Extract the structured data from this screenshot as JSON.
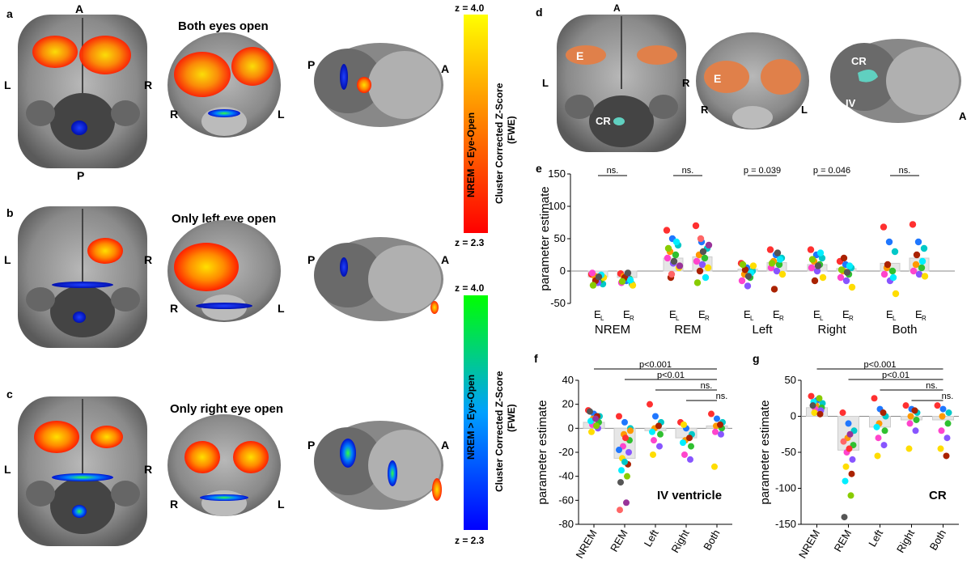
{
  "panel_labels": [
    "a",
    "b",
    "c",
    "d",
    "e",
    "f",
    "g"
  ],
  "panel_titles": {
    "a": "Both eyes open",
    "b": "Only left eye open",
    "c": "Only right eye open"
  },
  "orientation": {
    "A": "A",
    "P": "P",
    "L": "L",
    "R": "R"
  },
  "anatomy_labels": {
    "E": "E",
    "CR": "CR",
    "IV": "IV"
  },
  "colorbars": {
    "top": {
      "max_label": "z = 4.0",
      "min_label": "z = 2.3",
      "contrast": "NREM < Eye-Open",
      "metric": "Cluster Corrected Z-Score",
      "metric_sub": "(FWE)",
      "colors": [
        "#ff0000",
        "#ff8000",
        "#ffff00"
      ]
    },
    "bottom": {
      "max_label": "z = 4.0",
      "min_label": "z = 2.3",
      "contrast": "NREM > Eye-Open",
      "metric": "Cluster Corrected Z-Score",
      "metric_sub": "(FWE)",
      "colors": [
        "#0000ff",
        "#00a0ff",
        "#00ff00"
      ]
    }
  },
  "chart_data": [
    {
      "id": "e",
      "type": "bar",
      "ylabel": "parameter estimate",
      "ylim": [
        -50,
        150
      ],
      "yticks": [
        "150",
        "100",
        "50",
        "0",
        "-50"
      ],
      "groups": [
        "NREM",
        "REM",
        "Left",
        "Right",
        "Both"
      ],
      "bar_labels": [
        "E",
        "E"
      ],
      "bar_subs": [
        "L",
        "R"
      ],
      "bar_values": [
        [
          -9,
          -10
        ],
        [
          20,
          22
        ],
        [
          3,
          13
        ],
        [
          10,
          4
        ],
        [
          12,
          20
        ]
      ],
      "comparisons": [
        "ns.",
        "ns.",
        "p = 0.039",
        "p = 0.046",
        "ns."
      ],
      "points": [
        [
          [
            -5,
            -12,
            -20,
            -8,
            -14,
            -3,
            -18,
            -10,
            -15,
            -6,
            -22,
            -9
          ],
          [
            -4,
            -15,
            -20,
            -8,
            -12,
            -18,
            -6,
            -22,
            -10,
            -14,
            -16,
            -3
          ]
        ],
        [
          [
            63,
            50,
            40,
            30,
            25,
            20,
            12,
            5,
            -10,
            45,
            35,
            15,
            8,
            -5
          ],
          [
            70,
            45,
            35,
            25,
            20,
            15,
            10,
            5,
            0,
            -10,
            -18,
            30,
            40,
            50
          ]
        ],
        [
          [
            12,
            5,
            0,
            -5,
            -10,
            -15,
            -23,
            8,
            2,
            -3,
            10,
            -8
          ],
          [
            33,
            25,
            20,
            15,
            10,
            5,
            0,
            -5,
            -28,
            18,
            12,
            28
          ]
        ],
        [
          [
            33,
            25,
            20,
            15,
            10,
            5,
            0,
            -10,
            -15,
            28,
            18,
            8
          ],
          [
            15,
            10,
            5,
            0,
            -5,
            -10,
            -15,
            -25,
            20,
            8,
            2,
            -2
          ]
        ],
        [
          [
            68,
            45,
            30,
            5,
            0,
            -5,
            -15,
            -35,
            10,
            -10
          ],
          [
            72,
            45,
            35,
            10,
            5,
            0,
            -5,
            -8,
            25,
            15
          ]
        ]
      ]
    },
    {
      "id": "f",
      "type": "bar",
      "ylabel": "parameter estimate",
      "ylim": [
        -80,
        40
      ],
      "yticks": [
        "40",
        "20",
        "0",
        "-20",
        "-40",
        "-60",
        "-80"
      ],
      "categories": [
        "NREM",
        "REM",
        "Left",
        "Right",
        "Both"
      ],
      "values": [
        5,
        -25,
        -2,
        -8,
        2
      ],
      "annotation": "IV ventricle",
      "comparisons": [
        "p<0.001",
        "p<0.01",
        "ns.",
        "ns."
      ],
      "points": [
        [
          15,
          12,
          10,
          8,
          5,
          3,
          0,
          -3,
          10,
          6,
          2,
          14,
          8
        ],
        [
          10,
          5,
          0,
          -5,
          -10,
          -15,
          -20,
          -25,
          -30,
          -35,
          -40,
          -45,
          -62,
          -68,
          -8,
          -18,
          -28,
          -2
        ],
        [
          20,
          10,
          5,
          0,
          -5,
          -10,
          -15,
          -22,
          2,
          -3
        ],
        [
          5,
          0,
          -5,
          -10,
          -15,
          -22,
          -26,
          3,
          -8,
          -12
        ],
        [
          12,
          8,
          5,
          2,
          0,
          -3,
          -5,
          -32,
          3
        ]
      ]
    },
    {
      "id": "g",
      "type": "bar",
      "ylabel": "parameter estimate",
      "ylim": [
        -150,
        50
      ],
      "yticks": [
        "50",
        "0",
        "-50",
        "-100",
        "-150"
      ],
      "categories": [
        "NREM",
        "REM",
        "Left",
        "Right",
        "Both"
      ],
      "values": [
        12,
        -47,
        -15,
        -5,
        -5
      ],
      "annotation": "CR",
      "comparisons": [
        "p<0.001",
        "p<0.01",
        "ns.",
        "ns."
      ],
      "points": [
        [
          28,
          22,
          18,
          15,
          12,
          10,
          8,
          5,
          3,
          20,
          25,
          15
        ],
        [
          5,
          -10,
          -20,
          -30,
          -40,
          -50,
          -60,
          -70,
          -80,
          -90,
          -110,
          -140,
          -25,
          -35,
          -45
        ],
        [
          25,
          10,
          0,
          -10,
          -20,
          -30,
          -40,
          -55,
          5,
          -15
        ],
        [
          15,
          10,
          5,
          0,
          -5,
          -10,
          -20,
          -45,
          8
        ],
        [
          15,
          10,
          5,
          0,
          -10,
          -20,
          -30,
          -45,
          -55
        ]
      ]
    }
  ]
}
